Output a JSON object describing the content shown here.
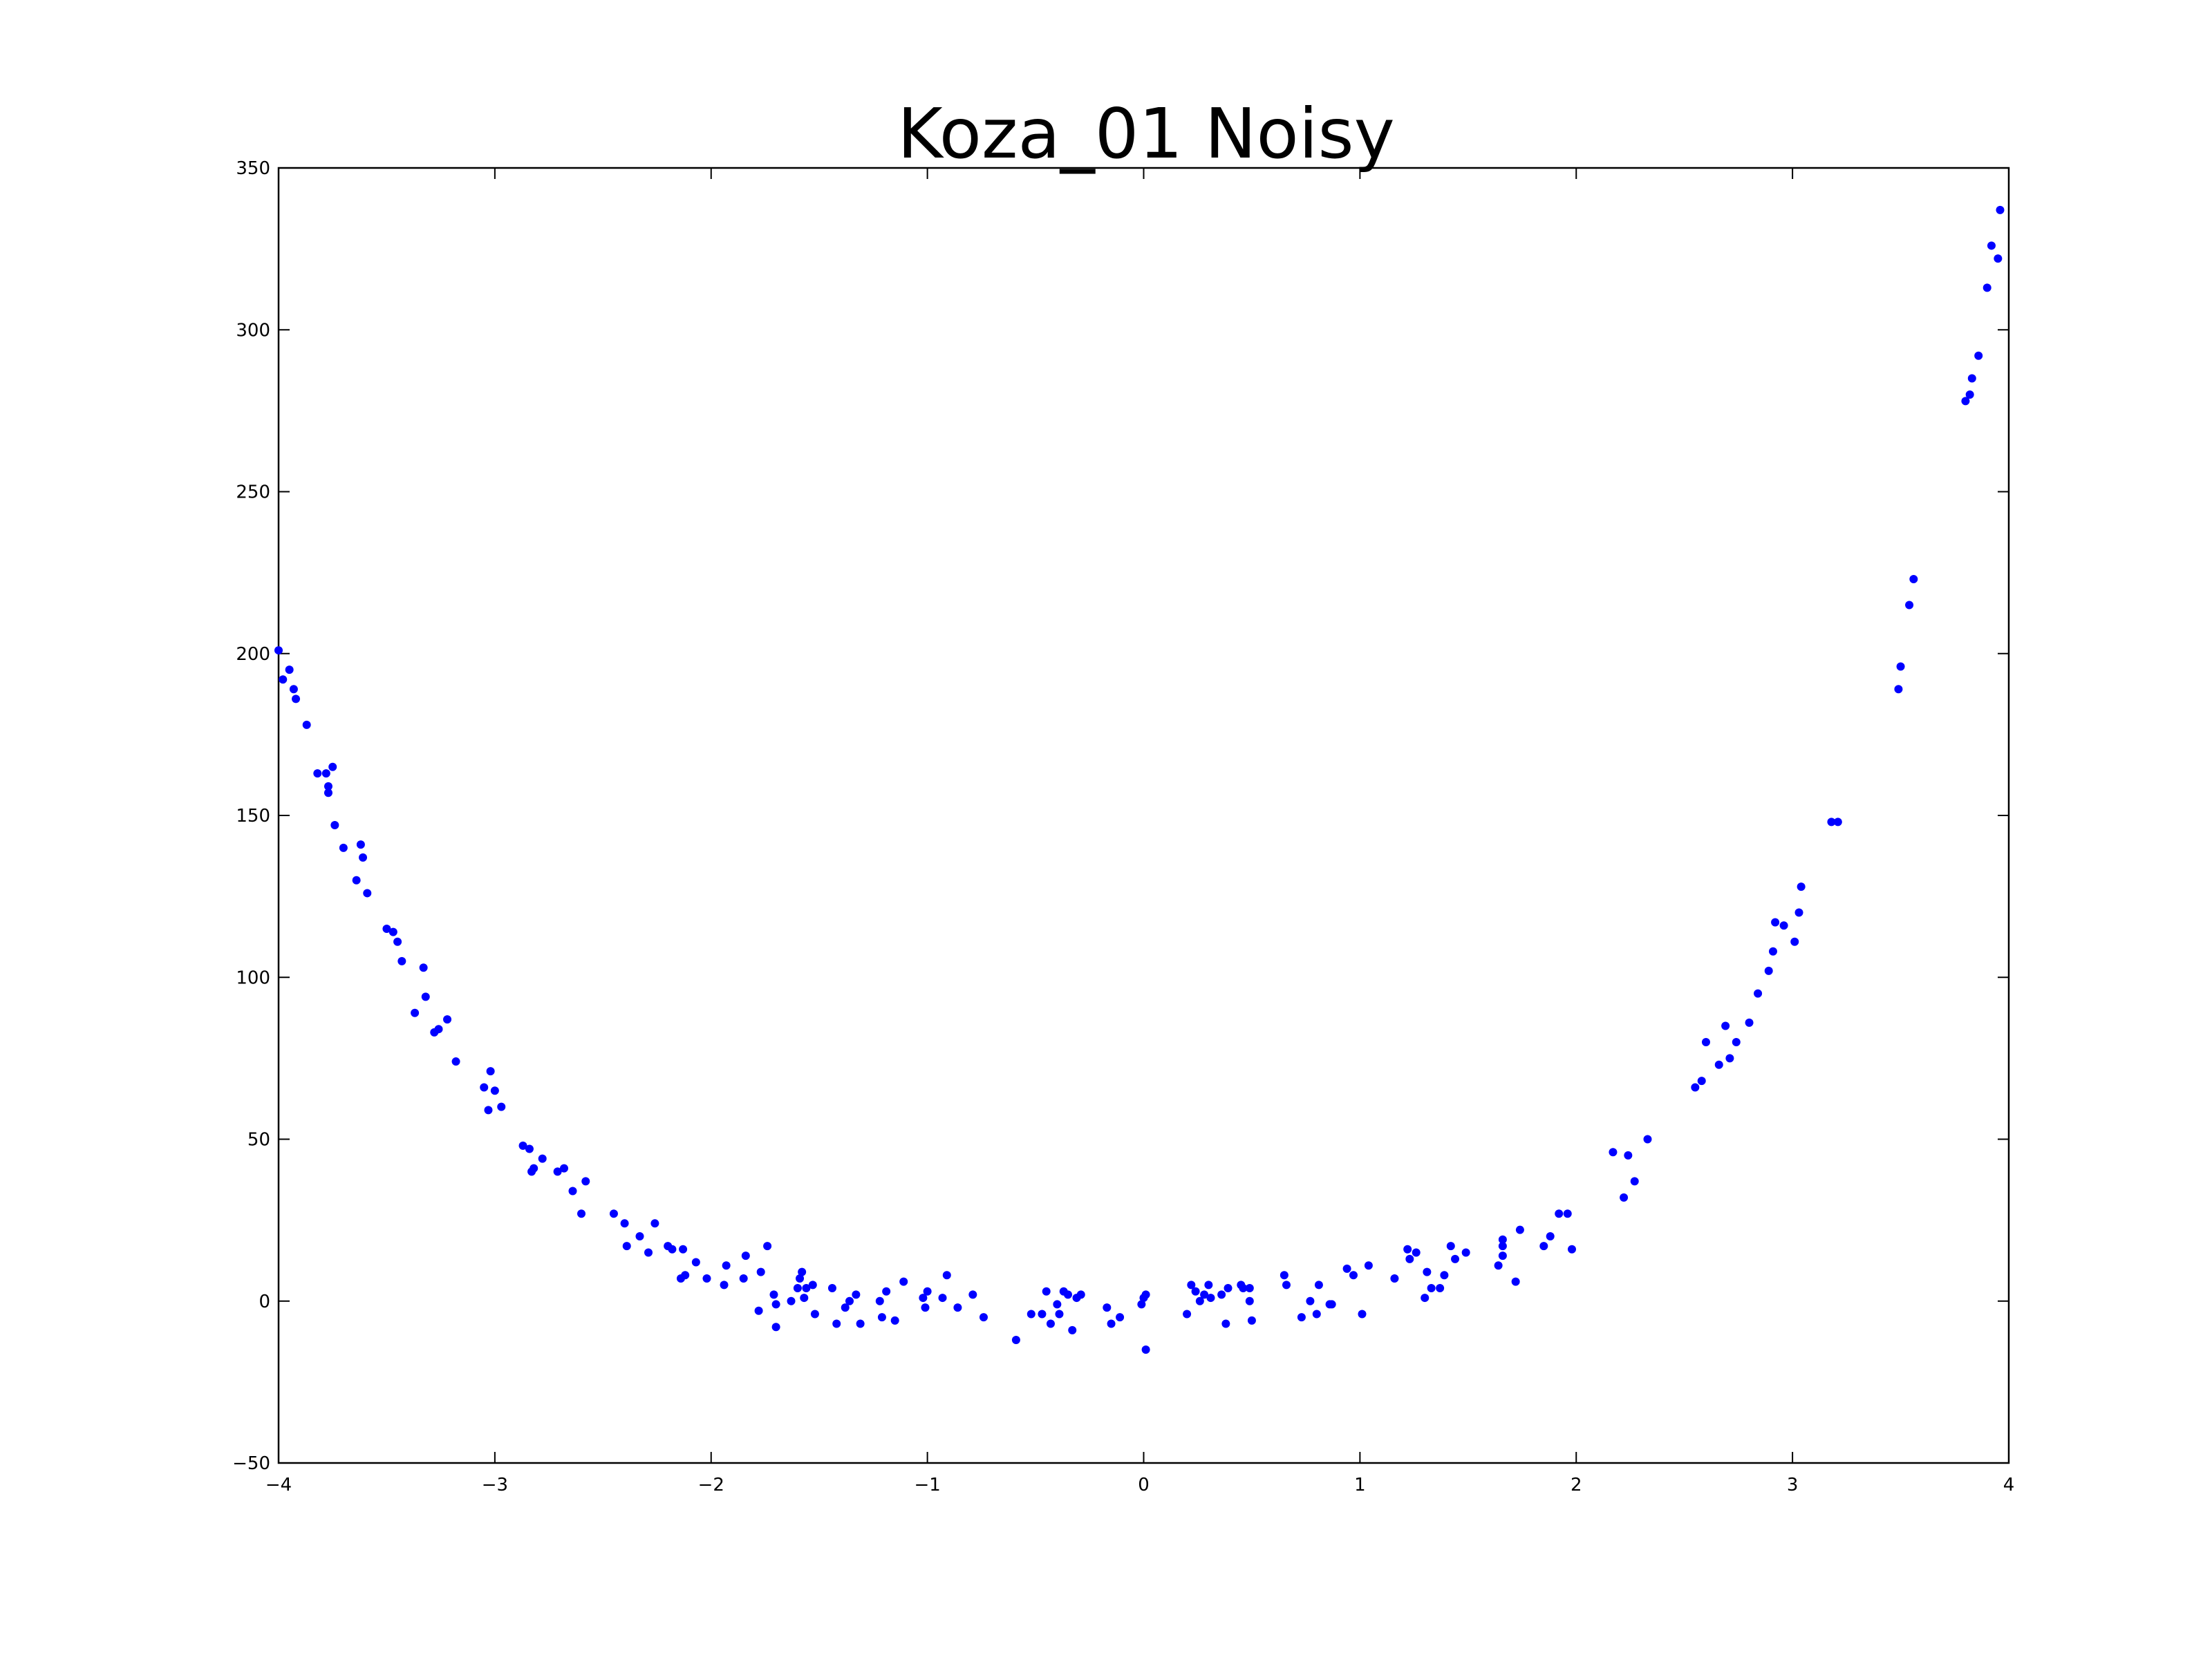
{
  "chart_data": {
    "type": "scatter",
    "title": "Koza_01 Noisy",
    "xlabel": "",
    "ylabel": "",
    "xlim": [
      -4,
      4
    ],
    "ylim": [
      -50,
      350
    ],
    "grid": false,
    "legend": "none",
    "marker_color": "#0000ff",
    "x_ticks": [
      -4,
      -3,
      -2,
      -1,
      0,
      1,
      2,
      3,
      4
    ],
    "x_tick_labels": [
      "−4",
      "−3",
      "−2",
      "−1",
      "0",
      "1",
      "2",
      "3",
      "4"
    ],
    "y_ticks": [
      -50,
      0,
      50,
      100,
      150,
      200,
      250,
      300,
      350
    ],
    "y_tick_labels": [
      "−50",
      "0",
      "50",
      "100",
      "150",
      "200",
      "250",
      "300",
      "350"
    ],
    "series": [
      {
        "points": [
          [
            -4.0,
            201
          ],
          [
            -3.98,
            192
          ],
          [
            -3.95,
            195
          ],
          [
            -3.93,
            189
          ],
          [
            -3.92,
            186
          ],
          [
            -3.87,
            178
          ],
          [
            -3.82,
            163
          ],
          [
            -3.78,
            163
          ],
          [
            -3.77,
            159
          ],
          [
            -3.77,
            157
          ],
          [
            -3.75,
            165
          ],
          [
            -3.74,
            147
          ],
          [
            -3.7,
            140
          ],
          [
            -3.64,
            130
          ],
          [
            -3.62,
            141
          ],
          [
            -3.61,
            137
          ],
          [
            -3.59,
            126
          ],
          [
            -3.5,
            115
          ],
          [
            -3.47,
            114
          ],
          [
            -3.45,
            111
          ],
          [
            -3.43,
            105
          ],
          [
            -3.37,
            89
          ],
          [
            -3.33,
            103
          ],
          [
            -3.32,
            94
          ],
          [
            -3.28,
            83
          ],
          [
            -3.26,
            84
          ],
          [
            -3.22,
            87
          ],
          [
            -3.18,
            74
          ],
          [
            -3.05,
            66
          ],
          [
            -3.03,
            59
          ],
          [
            -3.02,
            71
          ],
          [
            -3.0,
            65
          ],
          [
            -2.97,
            60
          ],
          [
            -2.87,
            48
          ],
          [
            -2.84,
            47
          ],
          [
            -2.83,
            40
          ],
          [
            -2.82,
            41
          ],
          [
            -2.78,
            44
          ],
          [
            -2.71,
            40
          ],
          [
            -2.68,
            41
          ],
          [
            -2.64,
            34
          ],
          [
            -2.6,
            27
          ],
          [
            -2.58,
            37
          ],
          [
            -2.45,
            27
          ],
          [
            -2.4,
            24
          ],
          [
            -2.39,
            17
          ],
          [
            -2.33,
            20
          ],
          [
            -2.29,
            15
          ],
          [
            -2.26,
            24
          ],
          [
            -2.2,
            17
          ],
          [
            -2.18,
            16
          ],
          [
            -2.13,
            16
          ],
          [
            -2.14,
            7
          ],
          [
            -2.12,
            8
          ],
          [
            -2.07,
            12
          ],
          [
            -2.02,
            7
          ],
          [
            -1.94,
            5
          ],
          [
            -1.93,
            11
          ],
          [
            -1.85,
            7
          ],
          [
            -1.84,
            14
          ],
          [
            -1.78,
            -3
          ],
          [
            -1.77,
            9
          ],
          [
            -1.74,
            17
          ],
          [
            -1.71,
            2
          ],
          [
            -1.7,
            -8
          ],
          [
            -1.7,
            -1
          ],
          [
            -1.63,
            0
          ],
          [
            -1.6,
            4
          ],
          [
            -1.59,
            7
          ],
          [
            -1.58,
            9
          ],
          [
            -1.57,
            1
          ],
          [
            -1.56,
            4
          ],
          [
            -1.53,
            5
          ],
          [
            -1.52,
            -4
          ],
          [
            -1.44,
            4
          ],
          [
            -1.42,
            -7
          ],
          [
            -1.38,
            -2
          ],
          [
            -1.36,
            0
          ],
          [
            -1.33,
            2
          ],
          [
            -1.31,
            -7
          ],
          [
            -1.22,
            0
          ],
          [
            -1.21,
            -5
          ],
          [
            -1.19,
            3
          ],
          [
            -1.15,
            -6
          ],
          [
            -1.11,
            6
          ],
          [
            -1.02,
            1
          ],
          [
            -1.01,
            -2
          ],
          [
            -1.0,
            3
          ],
          [
            -0.93,
            1
          ],
          [
            -0.91,
            8
          ],
          [
            -0.86,
            -2
          ],
          [
            -0.79,
            2
          ],
          [
            -0.74,
            -5
          ],
          [
            -0.59,
            -12
          ],
          [
            -0.52,
            -4
          ],
          [
            -0.47,
            -4
          ],
          [
            -0.45,
            3
          ],
          [
            -0.43,
            -7
          ],
          [
            -0.4,
            -1
          ],
          [
            -0.39,
            -4
          ],
          [
            -0.37,
            3
          ],
          [
            -0.35,
            2
          ],
          [
            -0.33,
            -9
          ],
          [
            -0.31,
            1
          ],
          [
            -0.29,
            2
          ],
          [
            -0.17,
            -2
          ],
          [
            -0.15,
            -7
          ],
          [
            -0.11,
            -5
          ],
          [
            -0.01,
            -1
          ],
          [
            0.0,
            1
          ],
          [
            0.01,
            2
          ],
          [
            0.01,
            -15
          ],
          [
            0.2,
            -4
          ],
          [
            0.22,
            5
          ],
          [
            0.24,
            3
          ],
          [
            0.26,
            0
          ],
          [
            0.28,
            2
          ],
          [
            0.3,
            5
          ],
          [
            0.31,
            1
          ],
          [
            0.36,
            2
          ],
          [
            0.38,
            -7
          ],
          [
            0.39,
            4
          ],
          [
            0.45,
            5
          ],
          [
            0.46,
            4
          ],
          [
            0.49,
            4
          ],
          [
            0.49,
            0
          ],
          [
            0.5,
            -6
          ],
          [
            0.65,
            8
          ],
          [
            0.66,
            5
          ],
          [
            0.73,
            -5
          ],
          [
            0.77,
            0
          ],
          [
            0.8,
            -4
          ],
          [
            0.81,
            5
          ],
          [
            0.86,
            -1
          ],
          [
            0.87,
            -1
          ],
          [
            0.94,
            10
          ],
          [
            0.97,
            8
          ],
          [
            1.01,
            -4
          ],
          [
            1.04,
            11
          ],
          [
            1.16,
            7
          ],
          [
            1.22,
            16
          ],
          [
            1.23,
            13
          ],
          [
            1.26,
            15
          ],
          [
            1.3,
            1
          ],
          [
            1.31,
            9
          ],
          [
            1.33,
            4
          ],
          [
            1.37,
            4
          ],
          [
            1.39,
            8
          ],
          [
            1.42,
            17
          ],
          [
            1.44,
            13
          ],
          [
            1.49,
            15
          ],
          [
            1.64,
            11
          ],
          [
            1.66,
            19
          ],
          [
            1.66,
            17
          ],
          [
            1.66,
            14
          ],
          [
            1.72,
            6
          ],
          [
            1.74,
            22
          ],
          [
            1.85,
            17
          ],
          [
            1.88,
            20
          ],
          [
            1.92,
            27
          ],
          [
            1.96,
            27
          ],
          [
            1.98,
            16
          ],
          [
            2.17,
            46
          ],
          [
            2.22,
            32
          ],
          [
            2.24,
            45
          ],
          [
            2.27,
            37
          ],
          [
            2.33,
            50
          ],
          [
            2.55,
            66
          ],
          [
            2.58,
            68
          ],
          [
            2.6,
            80
          ],
          [
            2.66,
            73
          ],
          [
            2.69,
            85
          ],
          [
            2.71,
            75
          ],
          [
            2.74,
            80
          ],
          [
            2.8,
            86
          ],
          [
            2.84,
            95
          ],
          [
            2.89,
            102
          ],
          [
            2.91,
            108
          ],
          [
            2.92,
            117
          ],
          [
            2.96,
            116
          ],
          [
            3.01,
            111
          ],
          [
            3.03,
            120
          ],
          [
            3.04,
            128
          ],
          [
            3.18,
            148
          ],
          [
            3.21,
            148
          ],
          [
            3.49,
            189
          ],
          [
            3.5,
            196
          ],
          [
            3.54,
            215
          ],
          [
            3.56,
            223
          ],
          [
            3.8,
            278
          ],
          [
            3.82,
            280
          ],
          [
            3.83,
            285
          ],
          [
            3.86,
            292
          ],
          [
            3.9,
            313
          ],
          [
            3.92,
            326
          ],
          [
            3.95,
            322
          ],
          [
            3.96,
            337
          ]
        ]
      }
    ]
  }
}
